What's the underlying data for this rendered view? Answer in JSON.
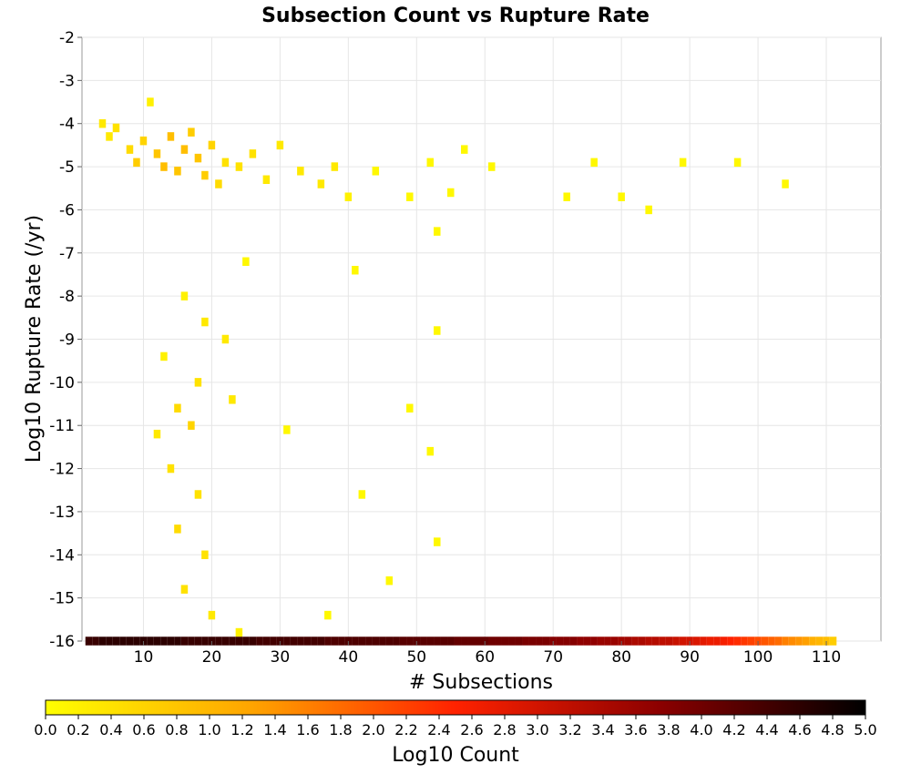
{
  "chart_data": {
    "type": "heatmap",
    "title": "Subsection Count vs Rupture Rate",
    "xlabel": "# Subsections",
    "ylabel": "Log10 Rupture Rate (/yr)",
    "colorbar_label": "Log10 Count",
    "xlim": [
      1,
      118
    ],
    "ylim": [
      -16,
      -2
    ],
    "x_ticks": [
      10,
      20,
      30,
      40,
      50,
      60,
      70,
      80,
      90,
      100,
      110
    ],
    "y_ticks": [
      -2,
      -3,
      -4,
      -5,
      -6,
      -7,
      -8,
      -9,
      -10,
      -11,
      -12,
      -13,
      -14,
      -15,
      -16
    ],
    "colorbar_range": [
      0.0,
      5.0
    ],
    "colorbar_ticks": [
      "0.0",
      "0.2",
      "0.4",
      "0.6",
      "0.8",
      "1.0",
      "1.2",
      "1.4",
      "1.6",
      "1.8",
      "2.0",
      "2.2",
      "2.4",
      "2.6",
      "2.8",
      "3.0",
      "3.2",
      "3.4",
      "3.6",
      "3.8",
      "4.0",
      "4.2",
      "4.4",
      "4.6",
      "4.8",
      "5.0"
    ],
    "grid": true,
    "colormap": [
      "#ffff00",
      "#ffa500",
      "#ff2200",
      "#8b0000",
      "#000000"
    ],
    "bin_width_x": 1,
    "bin_height_y": 0.2,
    "bottom_row_y": -16,
    "bottom_row_log10_counts": [
      4.5,
      4.5,
      4.6,
      4.6,
      4.6,
      4.6,
      4.6,
      4.6,
      4.6,
      4.6,
      4.6,
      4.6,
      4.6,
      4.6,
      4.5,
      4.5,
      4.5,
      4.5,
      4.5,
      4.5,
      4.5,
      4.5,
      4.5,
      4.5,
      4.5,
      4.4,
      4.4,
      4.4,
      4.4,
      4.4,
      4.4,
      4.4,
      4.4,
      4.4,
      4.4,
      4.3,
      4.3,
      4.3,
      4.3,
      4.3,
      4.3,
      4.3,
      4.3,
      4.3,
      4.3,
      4.3,
      4.2,
      4.2,
      4.2,
      4.2,
      4.2,
      4.2,
      4.2,
      4.2,
      4.1,
      4.1,
      4.1,
      4.1,
      4.1,
      4.0,
      4.0,
      4.0,
      4.0,
      4.0,
      3.9,
      3.9,
      3.9,
      3.9,
      3.8,
      3.8,
      3.8,
      3.8,
      3.7,
      3.7,
      3.7,
      3.6,
      3.6,
      3.6,
      3.5,
      3.5,
      3.4,
      3.4,
      3.3,
      3.3,
      3.2,
      3.2,
      3.1,
      3.0,
      3.0,
      2.9,
      2.8,
      2.7,
      2.7,
      2.6,
      2.5,
      2.4,
      2.3,
      2.2,
      2.1,
      2.0,
      1.9,
      1.8,
      1.6,
      1.5,
      1.4,
      1.3,
      1.1,
      1.0,
      0.9,
      0.7
    ],
    "cluster_points": [
      {
        "x": 4,
        "y": -4.0,
        "z": 0.3
      },
      {
        "x": 5,
        "y": -4.3,
        "z": 0.3
      },
      {
        "x": 6,
        "y": -4.1,
        "z": 0.4
      },
      {
        "x": 8,
        "y": -4.6,
        "z": 0.5
      },
      {
        "x": 9,
        "y": -4.9,
        "z": 0.7
      },
      {
        "x": 10,
        "y": -4.4,
        "z": 0.6
      },
      {
        "x": 11,
        "y": -3.5,
        "z": 0.2
      },
      {
        "x": 12,
        "y": -4.7,
        "z": 0.8
      },
      {
        "x": 13,
        "y": -5.0,
        "z": 0.9
      },
      {
        "x": 14,
        "y": -4.3,
        "z": 0.9
      },
      {
        "x": 15,
        "y": -5.1,
        "z": 0.8
      },
      {
        "x": 16,
        "y": -4.6,
        "z": 0.9
      },
      {
        "x": 17,
        "y": -4.2,
        "z": 0.7
      },
      {
        "x": 18,
        "y": -4.8,
        "z": 0.8
      },
      {
        "x": 19,
        "y": -5.2,
        "z": 0.7
      },
      {
        "x": 20,
        "y": -4.5,
        "z": 0.6
      },
      {
        "x": 21,
        "y": -5.4,
        "z": 0.5
      },
      {
        "x": 22,
        "y": -4.9,
        "z": 0.4
      },
      {
        "x": 24,
        "y": -5.0,
        "z": 0.4
      },
      {
        "x": 26,
        "y": -4.7,
        "z": 0.4
      },
      {
        "x": 28,
        "y": -5.3,
        "z": 0.3
      },
      {
        "x": 30,
        "y": -4.5,
        "z": 0.3
      },
      {
        "x": 33,
        "y": -5.1,
        "z": 0.3
      },
      {
        "x": 36,
        "y": -5.4,
        "z": 0.3
      },
      {
        "x": 38,
        "y": -5.0,
        "z": 0.3
      },
      {
        "x": 40,
        "y": -5.7,
        "z": 0.2
      },
      {
        "x": 44,
        "y": -5.1,
        "z": 0.1
      },
      {
        "x": 49,
        "y": -5.7,
        "z": 0.1
      },
      {
        "x": 52,
        "y": -4.9,
        "z": 0.1
      },
      {
        "x": 55,
        "y": -5.6,
        "z": 0.1
      },
      {
        "x": 57,
        "y": -4.6,
        "z": 0.1
      },
      {
        "x": 61,
        "y": -5.0,
        "z": 0.1
      },
      {
        "x": 72,
        "y": -5.7,
        "z": 0.1
      },
      {
        "x": 76,
        "y": -4.9,
        "z": 0.1
      },
      {
        "x": 80,
        "y": -5.7,
        "z": 0.1
      },
      {
        "x": 84,
        "y": -6.0,
        "z": 0.1
      },
      {
        "x": 89,
        "y": -4.9,
        "z": 0.1
      },
      {
        "x": 97,
        "y": -4.9,
        "z": 0.1
      },
      {
        "x": 104,
        "y": -5.4,
        "z": 0.1
      },
      {
        "x": 25,
        "y": -7.2,
        "z": 0.1
      },
      {
        "x": 41,
        "y": -7.4,
        "z": 0.1
      },
      {
        "x": 53,
        "y": -6.5,
        "z": 0.1
      },
      {
        "x": 16,
        "y": -8.0,
        "z": 0.2
      },
      {
        "x": 19,
        "y": -8.6,
        "z": 0.3
      },
      {
        "x": 22,
        "y": -9.0,
        "z": 0.3
      },
      {
        "x": 13,
        "y": -9.4,
        "z": 0.2
      },
      {
        "x": 18,
        "y": -10.0,
        "z": 0.4
      },
      {
        "x": 15,
        "y": -10.6,
        "z": 0.5
      },
      {
        "x": 12,
        "y": -11.2,
        "z": 0.3
      },
      {
        "x": 17,
        "y": -11.0,
        "z": 0.6
      },
      {
        "x": 23,
        "y": -10.4,
        "z": 0.3
      },
      {
        "x": 14,
        "y": -12.0,
        "z": 0.4
      },
      {
        "x": 18,
        "y": -12.6,
        "z": 0.4
      },
      {
        "x": 15,
        "y": -13.4,
        "z": 0.5
      },
      {
        "x": 19,
        "y": -14.0,
        "z": 0.4
      },
      {
        "x": 16,
        "y": -14.8,
        "z": 0.4
      },
      {
        "x": 20,
        "y": -15.4,
        "z": 0.3
      },
      {
        "x": 24,
        "y": -15.8,
        "z": 0.2
      },
      {
        "x": 53,
        "y": -8.8,
        "z": 0.1
      },
      {
        "x": 49,
        "y": -10.6,
        "z": 0.1
      },
      {
        "x": 52,
        "y": -11.6,
        "z": 0.1
      },
      {
        "x": 42,
        "y": -12.6,
        "z": 0.1
      },
      {
        "x": 53,
        "y": -13.7,
        "z": 0.1
      },
      {
        "x": 46,
        "y": -14.6,
        "z": 0.1
      },
      {
        "x": 37,
        "y": -15.4,
        "z": 0.1
      },
      {
        "x": 31,
        "y": -11.1,
        "z": 0.1
      }
    ]
  }
}
